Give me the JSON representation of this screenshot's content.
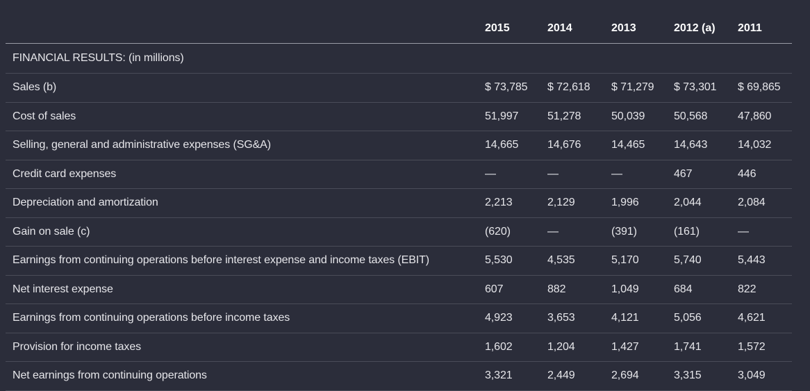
{
  "table": {
    "header": [
      "2015",
      "2014",
      "2013",
      "2012 (a)",
      "2011"
    ],
    "section_title": "FINANCIAL RESULTS: (in millions)",
    "rows": [
      {
        "label": "Sales (b)",
        "values": [
          "$ 73,785",
          "$ 72,618",
          "$ 71,279",
          "$ 73,301",
          "$ 69,865"
        ]
      },
      {
        "label": "Cost of sales",
        "values": [
          "51,997",
          "51,278",
          "50,039",
          "50,568",
          "47,860"
        ]
      },
      {
        "label": "Selling, general and administrative expenses (SG&A)",
        "values": [
          "14,665",
          "14,676",
          "14,465",
          "14,643",
          "14,032"
        ]
      },
      {
        "label": "Credit card expenses",
        "values": [
          "—",
          "—",
          "—",
          "467",
          "446"
        ]
      },
      {
        "label": "Depreciation and amortization",
        "values": [
          "2,213",
          "2,129",
          "1,996",
          "2,044",
          "2,084"
        ]
      },
      {
        "label": "Gain on sale (c)",
        "values": [
          "(620)",
          "—",
          "(391)",
          "(161)",
          "—"
        ]
      },
      {
        "label": "Earnings from continuing operations before interest expense and income taxes (EBIT)",
        "values": [
          "5,530",
          "4,535",
          "5,170",
          "5,740",
          "5,443"
        ]
      },
      {
        "label": "Net interest expense",
        "values": [
          "607",
          "882",
          "1,049",
          "684",
          "822"
        ]
      },
      {
        "label": "Earnings from continuing operations before income taxes",
        "values": [
          "4,923",
          "3,653",
          "4,121",
          "5,056",
          "4,621"
        ]
      },
      {
        "label": "Provision for income taxes",
        "values": [
          "1,602",
          "1,204",
          "1,427",
          "1,741",
          "1,572"
        ]
      },
      {
        "label": "Net earnings from continuing operations",
        "values": [
          "3,321",
          "2,449",
          "2,694",
          "3,315",
          "3,049"
        ]
      }
    ]
  }
}
